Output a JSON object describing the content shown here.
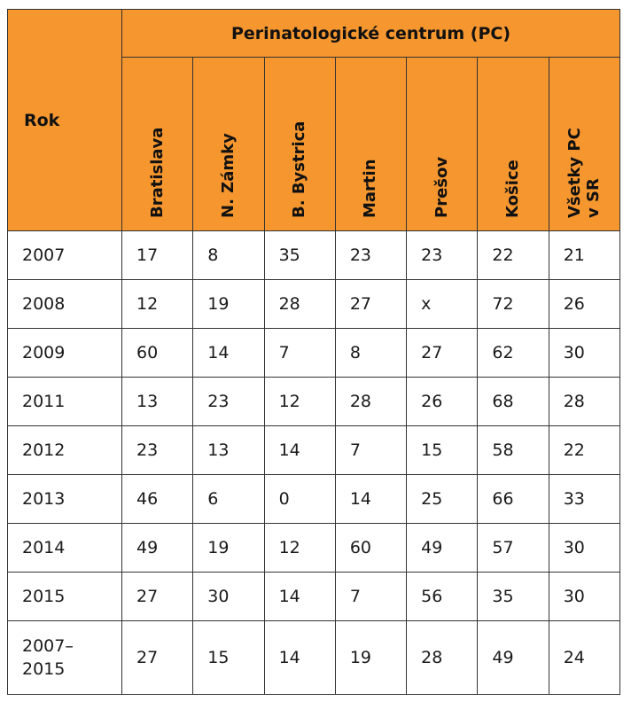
{
  "table": {
    "year_header": "Rok",
    "group_header": "Perinatologické centrum (PC)",
    "columns": [
      "Bratislava",
      "N. Zámky",
      "B. Bystrica",
      "Martin",
      "Prešov",
      "Košice",
      "Všetky PC\nv SR"
    ],
    "rows": [
      {
        "year": "2007",
        "values": [
          "17",
          "8",
          "35",
          "23",
          "23",
          "22",
          "21"
        ]
      },
      {
        "year": "2008",
        "values": [
          "12",
          "19",
          "28",
          "27",
          "x",
          "72",
          "26"
        ]
      },
      {
        "year": "2009",
        "values": [
          "60",
          "14",
          "7",
          "8",
          "27",
          "62",
          "30"
        ]
      },
      {
        "year": "2011",
        "values": [
          "13",
          "23",
          "12",
          "28",
          "26",
          "68",
          "28"
        ]
      },
      {
        "year": "2012",
        "values": [
          "23",
          "13",
          "14",
          "7",
          "15",
          "58",
          "22"
        ]
      },
      {
        "year": "2013",
        "values": [
          "46",
          "6",
          "0",
          "14",
          "25",
          "66",
          "33"
        ]
      },
      {
        "year": "2014",
        "values": [
          "49",
          "19",
          "12",
          "60",
          "49",
          "57",
          "30"
        ]
      },
      {
        "year": "2015",
        "values": [
          "27",
          "30",
          "14",
          "7",
          "56",
          "35",
          "30"
        ]
      },
      {
        "year": "2007–\n2015",
        "values": [
          "27",
          "15",
          "14",
          "19",
          "28",
          "49",
          "24"
        ]
      }
    ]
  },
  "colors": {
    "header_bg": "#f5962f",
    "border": "#333333",
    "text": "#1a1a1a"
  }
}
